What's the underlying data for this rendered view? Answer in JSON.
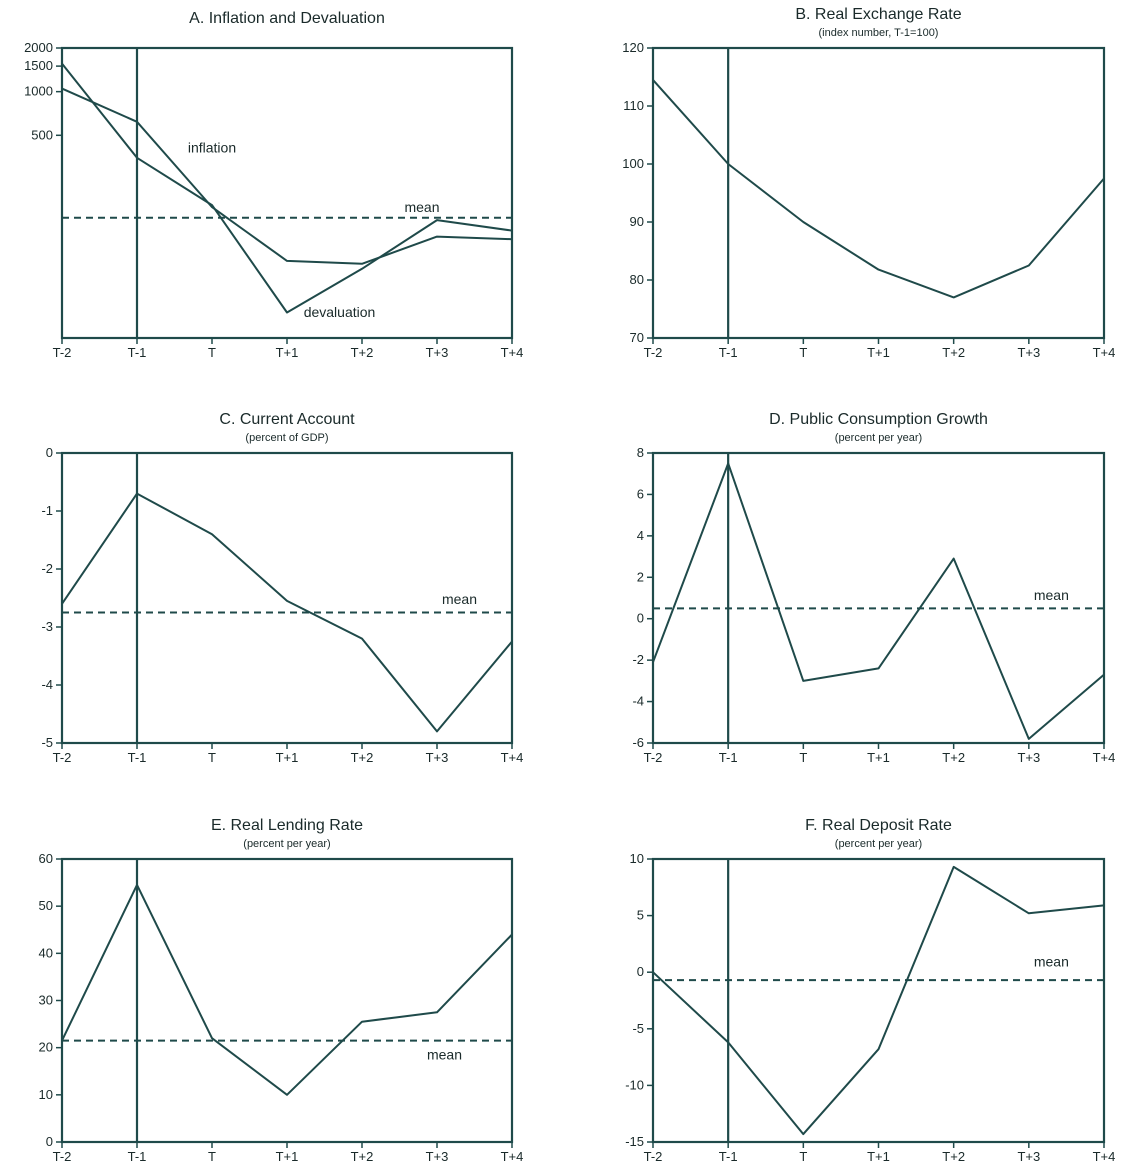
{
  "chart_data": [
    {
      "id": "A",
      "type": "line",
      "title": "A.  Inflation and Devaluation",
      "subtitle": "",
      "categories": [
        "T-2",
        "T-1",
        "T",
        "T+1",
        "T+2",
        "T+3",
        "T+4"
      ],
      "y_scale": "log",
      "ylim": [
        20,
        2000
      ],
      "yticks": [
        {
          "value": 2000,
          "label": "2000"
        },
        {
          "value": 1500,
          "label": "1500"
        },
        {
          "value": 1000,
          "label": "1000"
        },
        {
          "value": 500,
          "label": "500"
        }
      ],
      "vline_at": "T-1",
      "series": [
        {
          "name": "inflation",
          "style": "solid",
          "values": [
            1050,
            620,
            160,
            68,
            65,
            100,
            96
          ]
        },
        {
          "name": "devaluation",
          "style": "solid",
          "values": [
            1560,
            350,
            165,
            30,
            60,
            130,
            110
          ]
        }
      ],
      "mean": {
        "value": 135,
        "label": "mean"
      },
      "annotations": [
        {
          "text": "inflation",
          "x_index": 2,
          "value": 380
        },
        {
          "text": "devaluation",
          "x_index": 3.7,
          "value": 28
        },
        {
          "text": "mean",
          "x_index": 4.8,
          "value": 148
        }
      ]
    },
    {
      "id": "B",
      "type": "line",
      "title": "B.  Real Exchange Rate",
      "subtitle": "(index number, T-1=100)",
      "categories": [
        "T-2",
        "T-1",
        "T",
        "T+1",
        "T+2",
        "T+3",
        "T+4"
      ],
      "ylim": [
        70,
        120
      ],
      "yticks": [
        {
          "value": 120,
          "label": "120"
        },
        {
          "value": 110,
          "label": "110"
        },
        {
          "value": 100,
          "label": "100"
        },
        {
          "value": 90,
          "label": "90"
        },
        {
          "value": 80,
          "label": "80"
        },
        {
          "value": 70,
          "label": "70"
        }
      ],
      "vline_at": "T-1",
      "series": [
        {
          "name": "",
          "style": "solid",
          "values": [
            114.5,
            100,
            90,
            81.8,
            77,
            82.5,
            97.5
          ]
        }
      ],
      "annotations": []
    },
    {
      "id": "C",
      "type": "line",
      "title": "C.  Current Account",
      "subtitle": "(percent of GDP)",
      "categories": [
        "T-2",
        "T-1",
        "T",
        "T+1",
        "T+2",
        "T+3",
        "T+4"
      ],
      "ylim": [
        -5,
        0
      ],
      "yticks": [
        {
          "value": 0,
          "label": "0"
        },
        {
          "value": -1,
          "label": "-1"
        },
        {
          "value": -2,
          "label": "-2"
        },
        {
          "value": -3,
          "label": "-3"
        },
        {
          "value": -4,
          "label": "-4"
        },
        {
          "value": -5,
          "label": "-5"
        }
      ],
      "vline_at": "T-1",
      "series": [
        {
          "name": "",
          "style": "solid",
          "values": [
            -2.6,
            -0.7,
            -1.4,
            -2.55,
            -3.2,
            -4.8,
            -3.25
          ]
        }
      ],
      "mean": {
        "value": -2.75,
        "label": "mean"
      },
      "annotations": [
        {
          "text": "mean",
          "x_index": 5.3,
          "value": -2.6
        }
      ]
    },
    {
      "id": "D",
      "type": "line",
      "title": "D.  Public Consumption Growth",
      "subtitle": "(percent per year)",
      "categories": [
        "T-2",
        "T-1",
        "T",
        "T+1",
        "T+2",
        "T+3",
        "T+4"
      ],
      "ylim": [
        -6,
        8
      ],
      "yticks": [
        {
          "value": 8,
          "label": "8"
        },
        {
          "value": 6,
          "label": "6"
        },
        {
          "value": 4,
          "label": "4"
        },
        {
          "value": 2,
          "label": "2"
        },
        {
          "value": 0,
          "label": "0"
        },
        {
          "value": -2,
          "label": "-2"
        },
        {
          "value": -4,
          "label": "-4"
        },
        {
          "value": -6,
          "label": "-6"
        }
      ],
      "vline_at": "T-1",
      "series": [
        {
          "name": "",
          "style": "solid",
          "values": [
            -2.1,
            7.5,
            -3.0,
            -2.4,
            2.9,
            -5.8,
            -2.7
          ]
        }
      ],
      "mean": {
        "value": 0.5,
        "label": "mean"
      },
      "annotations": [
        {
          "text": "mean",
          "x_index": 5.3,
          "value": 0.9
        }
      ]
    },
    {
      "id": "E",
      "type": "line",
      "title": "E.  Real Lending Rate",
      "subtitle": "(percent per year)",
      "categories": [
        "T-2",
        "T-1",
        "T",
        "T+1",
        "T+2",
        "T+3",
        "T+4"
      ],
      "ylim": [
        0,
        60
      ],
      "yticks": [
        {
          "value": 60,
          "label": "60"
        },
        {
          "value": 50,
          "label": "50"
        },
        {
          "value": 40,
          "label": "40"
        },
        {
          "value": 30,
          "label": "30"
        },
        {
          "value": 20,
          "label": "20"
        },
        {
          "value": 10,
          "label": "10"
        },
        {
          "value": 0,
          "label": "0"
        }
      ],
      "vline_at": "T-1",
      "series": [
        {
          "name": "",
          "style": "solid",
          "values": [
            21.5,
            54.5,
            22,
            10,
            25.5,
            27.5,
            44
          ]
        }
      ],
      "mean": {
        "value": 21.5,
        "label": "mean"
      },
      "annotations": [
        {
          "text": "mean",
          "x_index": 5.1,
          "value": 17.5
        }
      ]
    },
    {
      "id": "F",
      "type": "line",
      "title": "F.  Real Deposit Rate",
      "subtitle": "(percent per year)",
      "categories": [
        "T-2",
        "T-1",
        "T",
        "T+1",
        "T+2",
        "T+3",
        "T+4"
      ],
      "ylim": [
        -15,
        10
      ],
      "yticks": [
        {
          "value": 10,
          "label": "10"
        },
        {
          "value": 5,
          "label": "5"
        },
        {
          "value": 0,
          "label": "0"
        },
        {
          "value": -5,
          "label": "-5"
        },
        {
          "value": -10,
          "label": "-10"
        },
        {
          "value": -15,
          "label": "-15"
        }
      ],
      "vline_at": "T-1",
      "series": [
        {
          "name": "",
          "style": "solid",
          "values": [
            0,
            -6.2,
            -14.3,
            -6.8,
            9.3,
            5.2,
            5.9
          ]
        }
      ],
      "mean": {
        "value": -0.7,
        "label": "mean"
      },
      "annotations": [
        {
          "text": "mean",
          "x_index": 5.3,
          "value": 0.5
        }
      ]
    }
  ]
}
